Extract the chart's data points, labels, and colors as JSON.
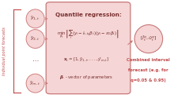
{
  "bg_color": "#ffffff",
  "node_color": "#f5d5d5",
  "node_edge_color": "#d08080",
  "box_color": "#f5d5d5",
  "box_edge_color": "#c87878",
  "arrow_color": "#c87878",
  "text_color": "#c04848",
  "dark_text": "#7a3030",
  "label_text": "#c04848",
  "figsize": [
    2.2,
    1.3
  ],
  "dpi": 100,
  "left_label": "Individual point forecasts",
  "box_title": "Quantile regression:",
  "caption_1": "Combined interval",
  "caption_2": "forecast (e.g. for",
  "caption_3": "q=0.05 & 0.95)"
}
